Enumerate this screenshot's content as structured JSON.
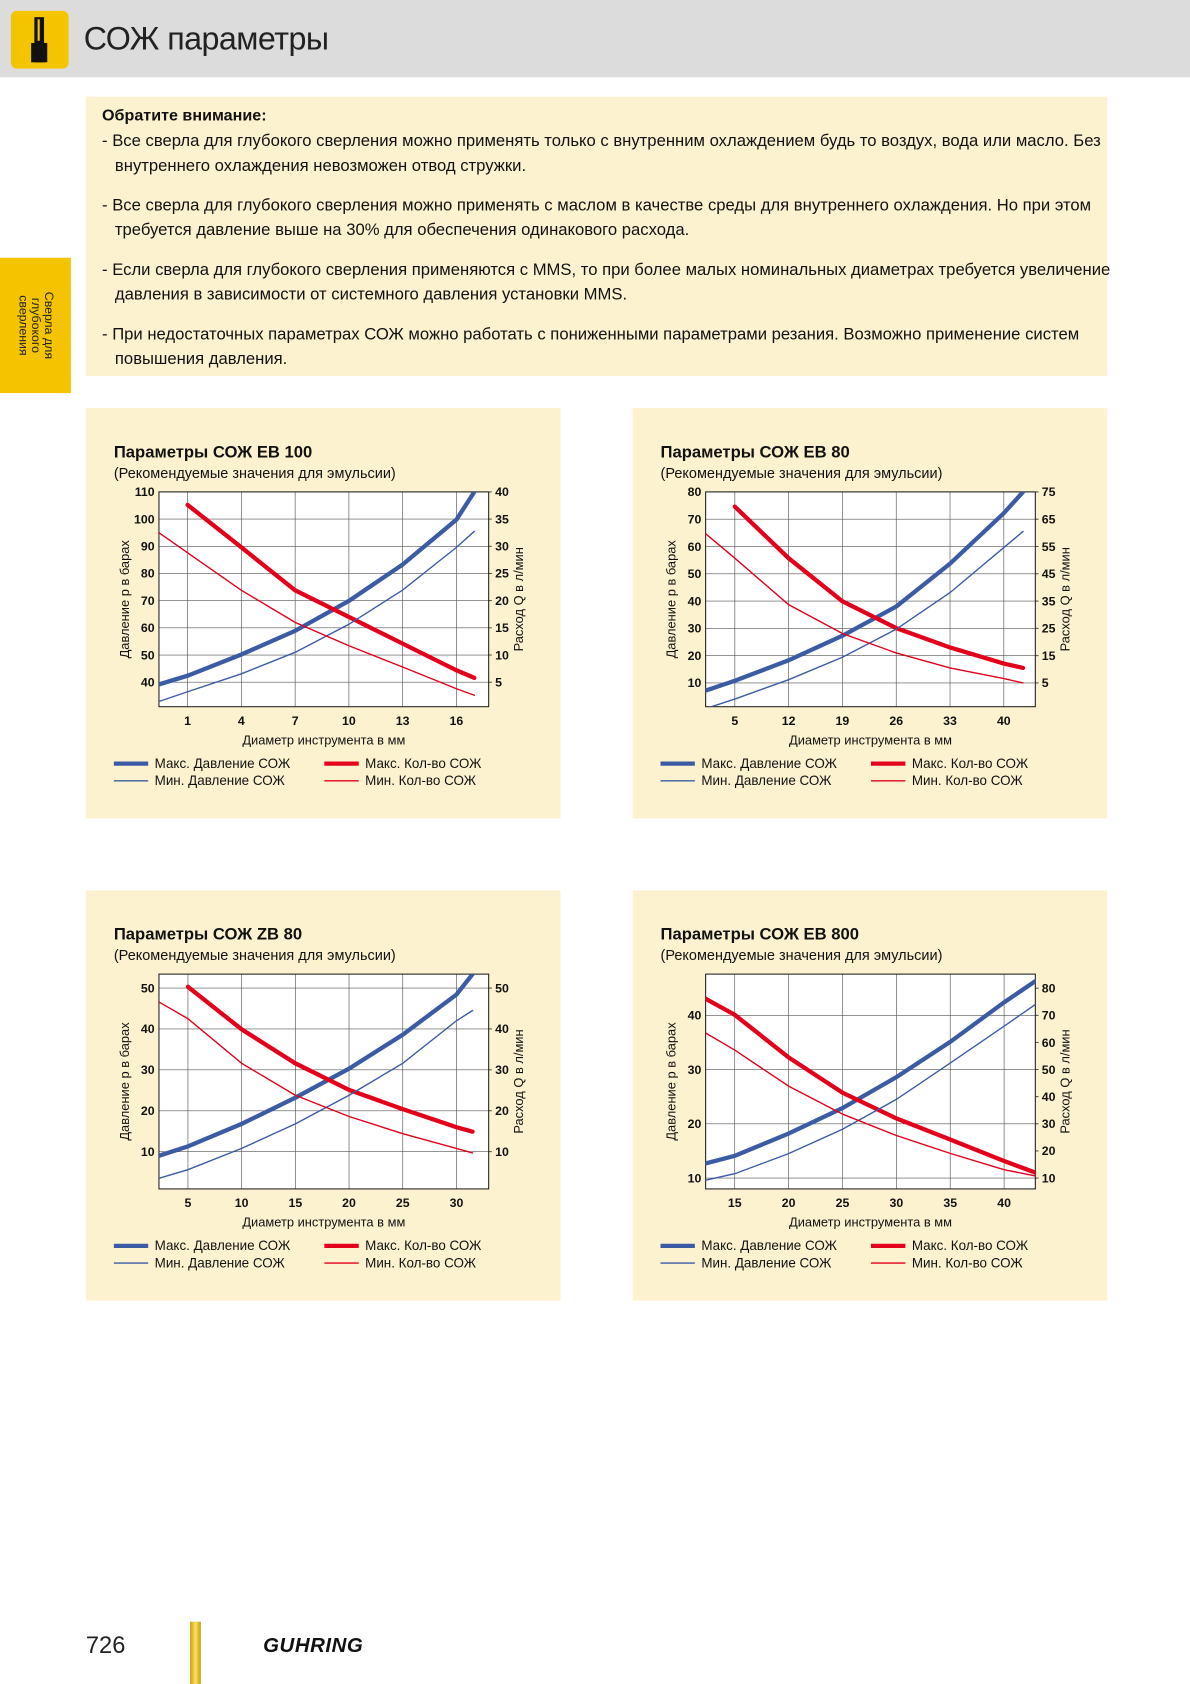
{
  "header": {
    "title": "СОЖ параметры"
  },
  "side_tab": {
    "lines": [
      "Сверла для",
      "глубокого",
      "сверления"
    ]
  },
  "note": {
    "heading": "Обратите внимание:",
    "items": [
      "- Все сверла для глубокого сверления можно применять только с внутренним охлаждением будь то воздух, вода или масло. Без внутреннего охлаждения невозможен отвод стружки.",
      "- Все сверла для глубокого сверления можно применять с маслом в качестве среды для внутреннего охлаждения. Но при этом требуется давление выше на 30% для обеспечения одинакового расхода.",
      "- Если сверла для глубокого сверления применяются с MMS, то при более малых номинальных диаметрах требуется увеличение давления в зависимости от системного давления установки MMS.",
      "- При недостаточных параметрах СОЖ можно работать с пониженными параметрами резания. Возможно применение систем повышения давления."
    ]
  },
  "chart_data": [
    {
      "type": "line",
      "title": "Параметры СОЖ EB 100",
      "subtitle": "(Рекомендуемые значения для эмульсии)",
      "xlabel": "Диаметр инструмента в мм",
      "ylabel": "Давление p в барах",
      "y2label": "Расход Q в л/мин",
      "x": [
        -0.6,
        1,
        4,
        7,
        10,
        13,
        16,
        17
      ],
      "xlim": [
        -0.6,
        17.8
      ],
      "xticks": [
        1,
        4,
        7,
        10,
        13,
        16
      ],
      "ylim": [
        31,
        110
      ],
      "yticks": [
        40,
        50,
        60,
        70,
        80,
        90,
        100,
        110
      ],
      "y2lim": [
        0.5,
        40
      ],
      "y2ticks": [
        5,
        10,
        15,
        20,
        25,
        30,
        35,
        40
      ],
      "grid": true,
      "legend": "bottom",
      "series": [
        {
          "name": "Макс. Давление СОЖ",
          "color": "#3b5ba5",
          "line_width": 4,
          "values": [
            39.2,
            42.4,
            50.2,
            58.9,
            69.9,
            83.3,
            99.8,
            110
          ]
        },
        {
          "name": "Макс. Кол-во СОЖ",
          "color": "#e3001b",
          "line_width": 4,
          "axis": "y2",
          "values": [
            null,
            37.6,
            29.8,
            21.9,
            17,
            12.1,
            7.2,
            5.8
          ]
        },
        {
          "name": "Мин. Давление СОЖ",
          "color": "#3b5ba5",
          "line_width": 1.3,
          "values": [
            32.9,
            36.5,
            43.1,
            51,
            61.3,
            73.9,
            89.6,
            95.5
          ]
        },
        {
          "name": "Мин. Кол-во СОЖ",
          "color": "#e3001b",
          "line_width": 1.3,
          "axis": "y2",
          "values": [
            32.5,
            28.8,
            21.9,
            16,
            11.7,
            7.8,
            3.8,
            2.6
          ]
        }
      ]
    },
    {
      "type": "line",
      "title": "Параметры СОЖ EB 80",
      "subtitle": "(Рекомендуемые значения для эмульсии)",
      "xlabel": "Диаметр инструмента в мм",
      "ylabel": "Давление p в барах",
      "y2label": "Расход Q в л/мин",
      "x": [
        1.2,
        5,
        12,
        19,
        26,
        33,
        40,
        42.5
      ],
      "xlim": [
        1.2,
        44.1
      ],
      "xticks": [
        5,
        12,
        19,
        26,
        33,
        40
      ],
      "ylim": [
        1.3,
        80
      ],
      "yticks": [
        10,
        20,
        30,
        40,
        50,
        60,
        70,
        80
      ],
      "y2lim": [
        -3.7,
        75
      ],
      "y2ticks": [
        5,
        15,
        25,
        35,
        45,
        55,
        65,
        75
      ],
      "grid": true,
      "legend": "bottom",
      "series": [
        {
          "name": "Макс. Давление СОЖ",
          "color": "#3b5ba5",
          "line_width": 4,
          "values": [
            7.2,
            10.8,
            18.3,
            27.3,
            38,
            53.7,
            72.2,
            80
          ]
        },
        {
          "name": "Макс. Кол-во СОЖ",
          "color": "#e3001b",
          "line_width": 4,
          "axis": "y2",
          "values": [
            null,
            69.6,
            50.7,
            34.9,
            25.1,
            18,
            12.1,
            10.5
          ]
        },
        {
          "name": "Мин. Давление СОЖ",
          "color": "#3b5ba5",
          "line_width": 1.3,
          "values": [
            0.6,
            4.1,
            11.2,
            19.4,
            29.7,
            43.1,
            59.6,
            65.5
          ]
        },
        {
          "name": "Мин. Кол-во СОЖ",
          "color": "#e3001b",
          "line_width": 1.3,
          "axis": "y2",
          "values": [
            59.7,
            50.7,
            33.7,
            23.1,
            16,
            10.5,
            6.6,
            5
          ]
        }
      ]
    },
    {
      "type": "line",
      "title": "Параметры СОЖ ZB 80",
      "subtitle": "(Рекомендуемые значения для эмульсии)",
      "xlabel": "Диаметр инструмента в мм",
      "ylabel": "Давление p в барах",
      "y2label": "Расход Q в л/мин",
      "x": [
        2.3,
        5,
        10,
        15,
        20,
        25,
        30,
        31.5
      ],
      "xlim": [
        2.3,
        33
      ],
      "xticks": [
        5,
        10,
        15,
        20,
        25,
        30
      ],
      "ylim": [
        0.9,
        53.4
      ],
      "yticks": [
        10,
        20,
        30,
        40,
        50
      ],
      "y2lim": [
        0.9,
        53.4
      ],
      "y2ticks": [
        10,
        20,
        30,
        40,
        50
      ],
      "grid": true,
      "legend": "bottom",
      "series": [
        {
          "name": "Макс. Давление СОЖ",
          "color": "#3b5ba5",
          "line_width": 4,
          "values": [
            9,
            11.3,
            16.8,
            23.2,
            30.3,
            38.6,
            48.4,
            53.4
          ]
        },
        {
          "name": "Макс. Кол-во СОЖ",
          "color": "#e3001b",
          "line_width": 4,
          "axis": "y2",
          "values": [
            null,
            50.3,
            39.9,
            31.6,
            25.1,
            20.4,
            16,
            14.9
          ]
        },
        {
          "name": "Мин. Давление СОЖ",
          "color": "#3b5ba5",
          "line_width": 1.3,
          "values": [
            3.5,
            5.6,
            10.8,
            16.8,
            23.8,
            31.6,
            42,
            44.5
          ]
        },
        {
          "name": "Мин. Кол-во СОЖ",
          "color": "#e3001b",
          "line_width": 1.3,
          "axis": "y2",
          "values": [
            46.6,
            42.5,
            31.6,
            23.8,
            18.6,
            14.4,
            10.8,
            9.7
          ]
        }
      ]
    },
    {
      "type": "line",
      "title": "Параметры СОЖ EB 800",
      "subtitle": "(Рекомендуемые значения для эмульсии)",
      "xlabel": "Диаметр инструмента в мм",
      "ylabel": "Давление p в барах",
      "y2label": "Расход Q в л/мин",
      "x": [
        12.3,
        15,
        20,
        25,
        30,
        35,
        40,
        42.9
      ],
      "xlim": [
        12.3,
        42.9
      ],
      "xticks": [
        15,
        20,
        25,
        30,
        35,
        40
      ],
      "ylim": [
        8,
        47.6
      ],
      "yticks": [
        10,
        20,
        30,
        40
      ],
      "y2lim": [
        6,
        85.2
      ],
      "y2ticks": [
        10,
        20,
        30,
        40,
        50,
        60,
        70,
        80
      ],
      "grid": true,
      "legend": "bottom",
      "series": [
        {
          "name": "Макс. Давление СОЖ",
          "color": "#3b5ba5",
          "line_width": 4,
          "values": [
            12.7,
            14.1,
            18.2,
            22.9,
            28.6,
            35.1,
            42.4,
            46.3
          ]
        },
        {
          "name": "Макс. Кол-во СОЖ",
          "color": "#e3001b",
          "line_width": 4,
          "axis": "y2",
          "values": [
            76.1,
            70.2,
            54.5,
            41.5,
            32,
            24.2,
            16.3,
            12
          ]
        },
        {
          "name": "Мин. Давление СОЖ",
          "color": "#3b5ba5",
          "line_width": 1.3,
          "values": [
            9.6,
            10.8,
            14.5,
            19,
            24.5,
            31.2,
            38,
            42
          ]
        },
        {
          "name": "Мин. Кол-во СОЖ",
          "color": "#e3001b",
          "line_width": 1.3,
          "axis": "y2",
          "values": [
            63.5,
            57.2,
            43.9,
            33.6,
            25.7,
            19.1,
            13.1,
            10.8
          ]
        }
      ]
    }
  ],
  "footer": {
    "page_number": "726",
    "brand": "GUHRING"
  }
}
